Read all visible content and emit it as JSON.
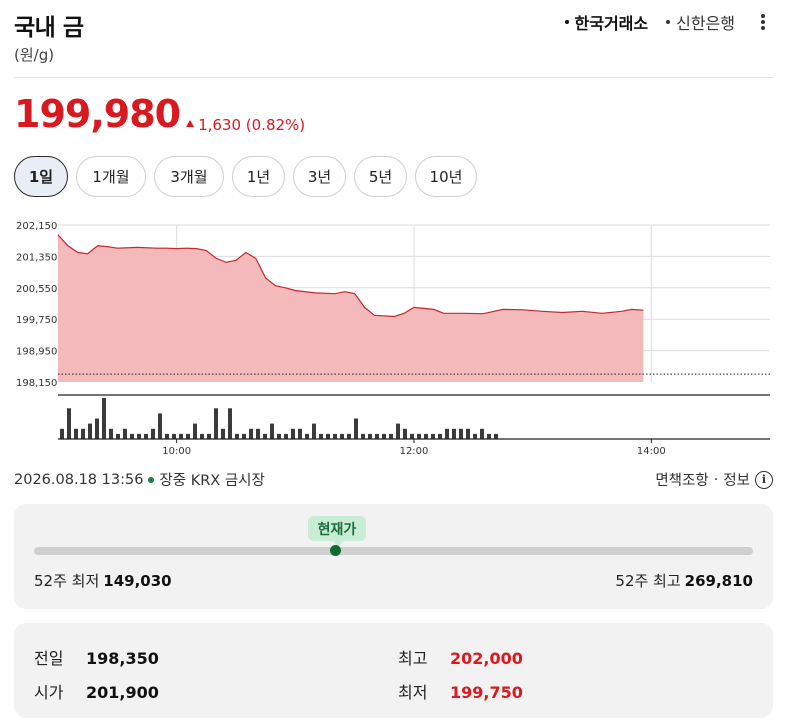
{
  "header": {
    "title": "국내 금",
    "unit": "(원/g)",
    "sources": [
      {
        "label": "한국거래소",
        "active": true
      },
      {
        "label": "신한은행",
        "active": false
      }
    ]
  },
  "price": {
    "current": "199,980",
    "change": "1,630 (0.82%)",
    "up_color": "#d9191f"
  },
  "tabs": [
    "1일",
    "1개월",
    "3개월",
    "1년",
    "3년",
    "5년",
    "10년"
  ],
  "chart_data": {
    "type": "area",
    "title": "",
    "ylim": [
      198150,
      202150
    ],
    "y_ticks": [
      "202,150",
      "201,350",
      "200,550",
      "199,750",
      "198,950",
      "198,150"
    ],
    "x_ticks": [
      "10:00",
      "12:00",
      "14:00"
    ],
    "x_range": [
      "09:00",
      "15:00"
    ],
    "price_series": [
      [
        "09:00",
        201900
      ],
      [
        "09:05",
        201620
      ],
      [
        "09:10",
        201450
      ],
      [
        "09:15",
        201420
      ],
      [
        "09:20",
        201620
      ],
      [
        "09:25",
        201600
      ],
      [
        "09:30",
        201560
      ],
      [
        "09:40",
        201580
      ],
      [
        "09:50",
        201560
      ],
      [
        "09:55",
        201560
      ],
      [
        "10:00",
        201550
      ],
      [
        "10:05",
        201560
      ],
      [
        "10:10",
        201550
      ],
      [
        "10:15",
        201500
      ],
      [
        "10:20",
        201300
      ],
      [
        "10:25",
        201200
      ],
      [
        "10:30",
        201250
      ],
      [
        "10:35",
        201450
      ],
      [
        "10:40",
        201300
      ],
      [
        "10:45",
        200800
      ],
      [
        "10:50",
        200600
      ],
      [
        "10:55",
        200550
      ],
      [
        "11:00",
        200480
      ],
      [
        "11:10",
        200420
      ],
      [
        "11:20",
        200400
      ],
      [
        "11:25",
        200450
      ],
      [
        "11:30",
        200400
      ],
      [
        "11:35",
        200050
      ],
      [
        "11:40",
        199850
      ],
      [
        "11:50",
        199820
      ],
      [
        "11:55",
        199900
      ],
      [
        "12:00",
        200050
      ],
      [
        "12:10",
        200000
      ],
      [
        "12:15",
        199900
      ],
      [
        "12:25",
        199900
      ],
      [
        "12:35",
        199890
      ],
      [
        "12:45",
        200000
      ],
      [
        "12:55",
        199990
      ],
      [
        "13:05",
        199950
      ],
      [
        "13:15",
        199920
      ],
      [
        "13:25",
        199950
      ],
      [
        "13:35",
        199900
      ],
      [
        "13:45",
        199950
      ],
      [
        "13:50",
        200000
      ],
      [
        "13:56",
        199980
      ]
    ],
    "volume": [
      2,
      6,
      2,
      2,
      3,
      4,
      8,
      2,
      1,
      2,
      1,
      1,
      1,
      2,
      5,
      1,
      1,
      1,
      1,
      3,
      1,
      1,
      6,
      2,
      6,
      1,
      1,
      2,
      2,
      1,
      3,
      1,
      1,
      2,
      2,
      1,
      3,
      1,
      1,
      1,
      1,
      1,
      4,
      1,
      1,
      1,
      1,
      1,
      3,
      2,
      1,
      1,
      1,
      1,
      1,
      2,
      2,
      2,
      2,
      1,
      2,
      1,
      1
    ],
    "ref_line": 198350,
    "fill_color": "#f4b9ba",
    "line_color": "#c4282e",
    "grid": true
  },
  "status": {
    "timestamp": "2026.08.18 13:56",
    "session": "장중 KRX 금시장",
    "disclaimer": "면책조항",
    "info": "정보"
  },
  "range52": {
    "current_label": "현재가",
    "low_label": "52주 최저",
    "low": "149,030",
    "high_label": "52주 최고",
    "high": "269,810",
    "position": 0.419
  },
  "stats": {
    "prev_close_label": "전일",
    "prev_close": "198,350",
    "open_label": "시가",
    "open": "201,900",
    "high_label": "최고",
    "high": "202,000",
    "low_label": "최저",
    "low": "199,750"
  }
}
